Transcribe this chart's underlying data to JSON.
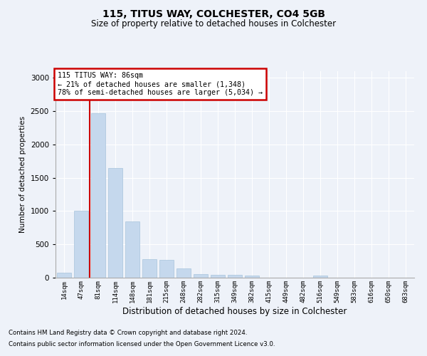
{
  "title1": "115, TITUS WAY, COLCHESTER, CO4 5GB",
  "title2": "Size of property relative to detached houses in Colchester",
  "xlabel": "Distribution of detached houses by size in Colchester",
  "ylabel": "Number of detached properties",
  "footnote1": "Contains HM Land Registry data © Crown copyright and database right 2024.",
  "footnote2": "Contains public sector information licensed under the Open Government Licence v3.0.",
  "categories": [
    "14sqm",
    "47sqm",
    "81sqm",
    "114sqm",
    "148sqm",
    "181sqm",
    "215sqm",
    "248sqm",
    "282sqm",
    "315sqm",
    "349sqm",
    "382sqm",
    "415sqm",
    "449sqm",
    "482sqm",
    "516sqm",
    "549sqm",
    "583sqm",
    "616sqm",
    "650sqm",
    "683sqm"
  ],
  "values": [
    75,
    1000,
    2470,
    1650,
    840,
    280,
    270,
    140,
    50,
    40,
    40,
    30,
    5,
    0,
    0,
    30,
    0,
    0,
    0,
    0,
    0
  ],
  "bar_color": "#c5d8ed",
  "bar_edge_color": "#a8c4dc",
  "vline_color": "#cc0000",
  "annotation_text": "115 TITUS WAY: 86sqm\n← 21% of detached houses are smaller (1,348)\n78% of semi-detached houses are larger (5,034) →",
  "annotation_box_color": "#ffffff",
  "annotation_box_edge_color": "#cc0000",
  "ylim": [
    0,
    3100
  ],
  "yticks": [
    0,
    500,
    1000,
    1500,
    2000,
    2500,
    3000
  ],
  "bg_color": "#eef2f9",
  "grid_color": "#ffffff"
}
